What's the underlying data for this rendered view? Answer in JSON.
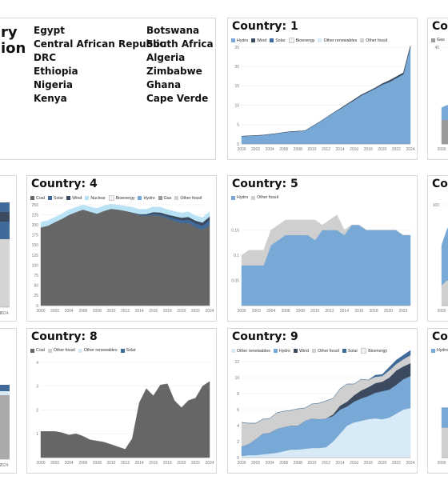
{
  "header": {
    "title_l1": "ry",
    "title_l2": "ion",
    "countries_col1": [
      "Egypt",
      "Central African Republic",
      "DRC",
      "Ethiopia",
      "Nigeria",
      "Kenya"
    ],
    "countries_col2": [
      "Botswana",
      "South Africa",
      "Algeria",
      "Zimbabwe",
      "Ghana",
      "Cape Verde"
    ]
  },
  "colors": {
    "Hydro": "#78a8d6",
    "Wind": "#3b4a5e",
    "Solar": "#3f6a9a",
    "Bioenergy": "#f1f1f1",
    "Other renewables": "#d8eaf5",
    "Other fossil": "#cfcfcf",
    "Coal": "#666666",
    "Nuclear": "#b9e3f5",
    "Gas": "#9a9a9a"
  },
  "chart_data": [
    {
      "id": "c1",
      "type": "area",
      "title": "Country: 1",
      "legend": [
        "Hydro",
        "Wind",
        "Solar",
        "Bioenergy",
        "Other renewables",
        "Other fossil"
      ],
      "x": [
        2000,
        2001,
        2002,
        2003,
        2004,
        2005,
        2006,
        2007,
        2008,
        2009,
        2010,
        2011,
        2012,
        2013,
        2014,
        2015,
        2016,
        2017,
        2018,
        2019,
        2020,
        2021,
        2022,
        2023,
        2024
      ],
      "xticks": [
        2000,
        2002,
        2004,
        2006,
        2008,
        2010,
        2012,
        2014,
        2016,
        2018,
        2020,
        2022,
        2024
      ],
      "ylim": [
        0,
        25
      ],
      "yticks": [
        0,
        5,
        10,
        15,
        20,
        25
      ],
      "series": [
        {
          "name": "Hydro",
          "values": [
            2.0,
            2.1,
            2.2,
            2.3,
            2.5,
            2.7,
            3.0,
            3.2,
            3.3,
            3.4,
            4.5,
            5.6,
            6.8,
            8.0,
            9.0,
            10.2,
            11.3,
            12.5,
            13.4,
            14.3,
            15.3,
            16.0,
            17.0,
            18.0,
            25.0
          ]
        },
        {
          "name": "Wind",
          "values": [
            0,
            0,
            0,
            0,
            0,
            0,
            0,
            0,
            0,
            0,
            0,
            0,
            0,
            0,
            0.15,
            0.15,
            0.2,
            0.2,
            0.2,
            0.2,
            0.3,
            0.4,
            0.4,
            0.4,
            0.4
          ]
        }
      ]
    },
    {
      "id": "c3",
      "type": "area",
      "title": "Cou",
      "legend": [
        "Gas"
      ],
      "x": [
        2000,
        2001,
        2002
      ],
      "xticks": [
        2000
      ],
      "ylim": [
        0,
        40
      ],
      "yticks": [
        40
      ],
      "series": [
        {
          "name": "Gas",
          "values": [
            10,
            10,
            10
          ]
        },
        {
          "name": "Hydro",
          "values": [
            5,
            6,
            6
          ]
        }
      ]
    },
    {
      "id": "c4",
      "type": "area",
      "title": "Country: 4",
      "legend": [
        "Coal",
        "Solar",
        "Wind",
        "Nuclear",
        "Bioenergy",
        "Hydro",
        "Gas",
        "Other fossil"
      ],
      "x": [
        2000,
        2001,
        2002,
        2003,
        2004,
        2005,
        2006,
        2007,
        2008,
        2009,
        2010,
        2011,
        2012,
        2013,
        2014,
        2015,
        2016,
        2017,
        2018,
        2019,
        2020,
        2021,
        2022,
        2023,
        2024
      ],
      "xticks": [
        2000,
        2002,
        2004,
        2006,
        2008,
        2010,
        2012,
        2014,
        2016,
        2018,
        2020,
        2022,
        2024
      ],
      "ylim": [
        0,
        250
      ],
      "yticks": [
        0,
        25,
        50,
        75,
        100,
        125,
        150,
        175,
        200,
        225,
        250
      ],
      "series": [
        {
          "name": "Coal",
          "values": [
            194,
            198,
            207,
            215,
            225,
            232,
            238,
            233,
            228,
            235,
            240,
            238,
            235,
            230,
            224,
            222,
            225,
            222,
            216,
            210,
            205,
            205,
            195,
            188,
            200
          ]
        },
        {
          "name": "Solar",
          "values": [
            0,
            0,
            0,
            0,
            0,
            0,
            0,
            0,
            0,
            0,
            0,
            0,
            0,
            0,
            1,
            2,
            3,
            4,
            5,
            6,
            7,
            8,
            9,
            10,
            12
          ]
        },
        {
          "name": "Wind",
          "values": [
            0,
            0,
            0,
            0,
            0,
            0,
            0,
            0,
            0,
            0,
            0,
            0,
            0,
            1,
            2,
            3,
            4,
            5,
            5,
            6,
            6,
            7,
            7,
            8,
            9
          ]
        },
        {
          "name": "Nuclear",
          "values": [
            13,
            13,
            12,
            13,
            13,
            12,
            12,
            12,
            13,
            13,
            12,
            12,
            12,
            13,
            12,
            12,
            13,
            13,
            12,
            12,
            12,
            13,
            12,
            12,
            12
          ]
        }
      ]
    },
    {
      "id": "c5",
      "type": "area",
      "title": "Country: 5",
      "legend": [
        "Hydro",
        "Other fossil"
      ],
      "x": [
        2000,
        2001,
        2002,
        2003,
        2004,
        2005,
        2006,
        2007,
        2008,
        2009,
        2010,
        2011,
        2012,
        2013,
        2014,
        2015,
        2016,
        2017,
        2018,
        2019,
        2020,
        2021,
        2022,
        2023
      ],
      "xticks": [
        2000,
        2002,
        2004,
        2006,
        2008,
        2010,
        2012,
        2014,
        2016,
        2018,
        2020,
        2022
      ],
      "ylim": [
        0,
        0.2
      ],
      "yticks": [
        0.05,
        0.1,
        0.15
      ],
      "series": [
        {
          "name": "Hydro",
          "values": [
            0.08,
            0.08,
            0.08,
            0.08,
            0.12,
            0.13,
            0.14,
            0.14,
            0.14,
            0.14,
            0.13,
            0.15,
            0.15,
            0.15,
            0.14,
            0.16,
            0.16,
            0.15,
            0.15,
            0.15,
            0.15,
            0.15,
            0.14,
            0.14
          ]
        },
        {
          "name": "Other fossil",
          "values": [
            0.02,
            0.03,
            0.03,
            0.03,
            0.03,
            0.03,
            0.03,
            0.03,
            0.03,
            0.03,
            0.04,
            0.01,
            0.02,
            0.03,
            0.01,
            0,
            0,
            0,
            0,
            0,
            0,
            0,
            0,
            0
          ]
        }
      ]
    },
    {
      "id": "c6",
      "type": "area",
      "title": "Co",
      "legend": [],
      "x": [
        2000,
        2001,
        2002
      ],
      "xticks": [
        2000
      ],
      "ylim": [
        0,
        100
      ],
      "yticks": [
        100
      ],
      "series": [
        {
          "name": "Other fossil",
          "values": [
            20,
            25,
            25
          ]
        },
        {
          "name": "Hydro",
          "values": [
            40,
            50,
            60
          ]
        }
      ]
    },
    {
      "id": "c8",
      "type": "area",
      "title": "Country: 8",
      "legend": [
        "Coal",
        "Other fossil",
        "Other renewables",
        "Solar"
      ],
      "x": [
        2000,
        2001,
        2002,
        2003,
        2004,
        2005,
        2006,
        2007,
        2008,
        2009,
        2010,
        2011,
        2012,
        2013,
        2014,
        2015,
        2016,
        2017,
        2018,
        2019,
        2020,
        2021,
        2022,
        2023,
        2024
      ],
      "xticks": [
        2000,
        2002,
        2004,
        2006,
        2008,
        2010,
        2012,
        2014,
        2016,
        2018,
        2020,
        2022,
        2024
      ],
      "ylim": [
        0,
        4.2
      ],
      "yticks": [
        1,
        2,
        3,
        4
      ],
      "series": [
        {
          "name": "Coal",
          "values": [
            1.1,
            1.1,
            1.1,
            1.05,
            0.95,
            1.0,
            0.9,
            0.75,
            0.7,
            0.65,
            0.55,
            0.45,
            0.35,
            0.8,
            2.3,
            2.9,
            2.6,
            3.05,
            3.1,
            2.4,
            2.1,
            2.4,
            2.5,
            3.0,
            3.2
          ]
        }
      ]
    },
    {
      "id": "c9",
      "type": "area",
      "title": "Country: 9",
      "legend": [
        "Other renewables",
        "Hydro",
        "Wind",
        "Other fossil",
        "Solar",
        "Bioenergy"
      ],
      "x": [
        2000,
        2001,
        2002,
        2003,
        2004,
        2005,
        2006,
        2007,
        2008,
        2009,
        2010,
        2011,
        2012,
        2013,
        2014,
        2015,
        2016,
        2017,
        2018,
        2019,
        2020,
        2021,
        2022,
        2023,
        2024
      ],
      "xticks": [
        2000,
        2002,
        2004,
        2006,
        2008,
        2010,
        2012,
        2014,
        2016,
        2018,
        2020,
        2022,
        2024
      ],
      "ylim": [
        0,
        12.5
      ],
      "yticks": [
        0,
        2,
        4,
        6,
        8,
        10,
        12
      ],
      "series": [
        {
          "name": "Other renewables",
          "values": [
            0.2,
            0.3,
            0.3,
            0.4,
            0.5,
            0.6,
            0.8,
            1.0,
            1.0,
            1.1,
            1.2,
            1.2,
            1.3,
            2.0,
            3.0,
            4.0,
            4.4,
            4.6,
            4.8,
            4.9,
            4.8,
            5.0,
            5.5,
            6.0,
            6.2
          ]
        },
        {
          "name": "Hydro",
          "values": [
            1.2,
            1.4,
            2.0,
            2.6,
            2.6,
            3.0,
            3.0,
            3.0,
            3.0,
            3.5,
            3.7,
            3.6,
            3.6,
            3.2,
            3.0,
            2.4,
            2.6,
            2.8,
            2.9,
            3.2,
            3.5,
            3.5,
            3.6,
            3.8,
            4.0
          ]
        },
        {
          "name": "Wind",
          "values": [
            0,
            0,
            0,
            0,
            0,
            0,
            0,
            0,
            0,
            0,
            0,
            0,
            0,
            0.2,
            0.5,
            0.6,
            0.8,
            1.0,
            1.1,
            1.2,
            1.2,
            1.5,
            1.8,
            1.6,
            1.6
          ]
        },
        {
          "name": "Other fossil",
          "values": [
            3.0,
            2.6,
            2.0,
            1.8,
            1.8,
            2.0,
            2.0,
            1.9,
            2.1,
            1.6,
            1.8,
            2.0,
            2.2,
            2.0,
            2.1,
            2.2,
            1.4,
            1.4,
            0.9,
            0.8,
            0.7,
            0.9,
            0.8,
            0.9,
            1.0
          ]
        },
        {
          "name": "Solar",
          "values": [
            0,
            0,
            0,
            0,
            0,
            0,
            0,
            0,
            0,
            0,
            0,
            0,
            0,
            0,
            0,
            0,
            0,
            0,
            0,
            0.2,
            0.2,
            0.4,
            0.5,
            0.5,
            0.6
          ]
        }
      ]
    },
    {
      "id": "c10",
      "type": "area",
      "title": "Co",
      "legend": [
        "Hydro"
      ],
      "x": [
        2000,
        2001,
        2002
      ],
      "xticks": [
        2000
      ],
      "ylim": [
        0,
        10
      ],
      "yticks": [],
      "series": [
        {
          "name": "Other fossil",
          "values": [
            3,
            3,
            3
          ]
        },
        {
          "name": "Hydro",
          "values": [
            2,
            2,
            2
          ]
        }
      ]
    }
  ],
  "partial_left": [
    {
      "id": "pl1",
      "xticks": [
        "2020",
        "2024"
      ]
    },
    {
      "id": "pl2",
      "xticks": [
        "2022",
        "2024"
      ]
    }
  ]
}
